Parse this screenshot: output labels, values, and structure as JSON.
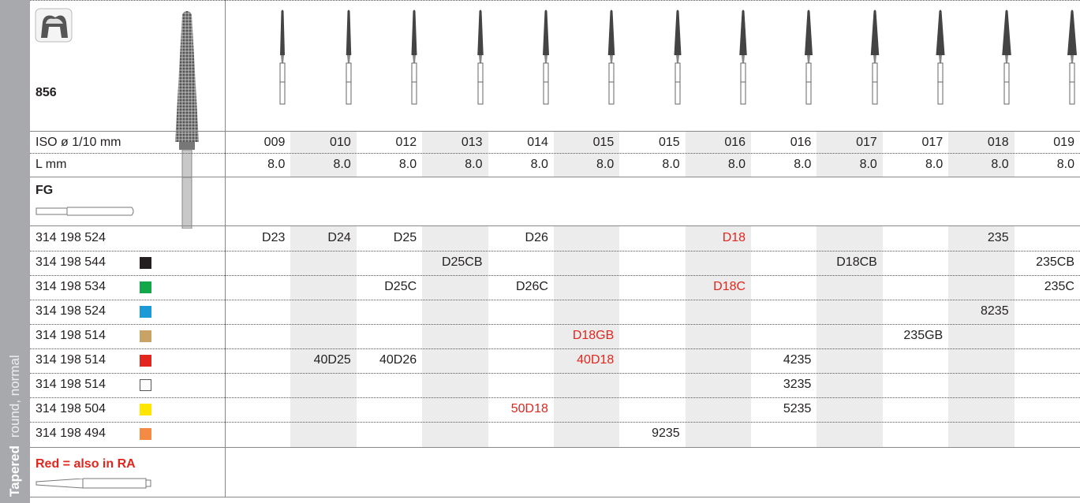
{
  "header": {
    "number": "856",
    "iso_label": "ISO ø 1/10 mm",
    "length_label": "L mm",
    "shank": "FG",
    "note": "Red = also in RA",
    "side_title": "Tapered",
    "side_subtitle": "round, normal"
  },
  "column_shade": "#ececec",
  "iso": [
    "009",
    "010",
    "012",
    "013",
    "014",
    "015",
    "015",
    "016",
    "016",
    "017",
    "017",
    "018",
    "019"
  ],
  "length": [
    "8.0",
    "8.0",
    "8.0",
    "8.0",
    "8.0",
    "8.0",
    "8.0",
    "8.0",
    "8.0",
    "8.0",
    "8.0",
    "8.0",
    "8.0"
  ],
  "rows": [
    {
      "code": "314 198 524",
      "swatch": null,
      "cells": [
        "D23",
        "D24",
        "D25",
        null,
        "D26",
        null,
        null,
        {
          "text": "D18",
          "color": "#e2261d"
        },
        null,
        null,
        null,
        "235",
        null
      ]
    },
    {
      "code": "314 198 544",
      "swatch": "#231f20",
      "cells": [
        null,
        null,
        null,
        "D25CB",
        null,
        null,
        null,
        null,
        null,
        "D18CB",
        null,
        null,
        "235CB"
      ]
    },
    {
      "code": "314 198 534",
      "swatch": "#12a84a",
      "cells": [
        null,
        null,
        "D25C",
        null,
        "D26C",
        null,
        null,
        {
          "text": "D18C",
          "color": "#e2261d"
        },
        null,
        null,
        null,
        null,
        "235C"
      ]
    },
    {
      "code": "314 198 524",
      "swatch": "#1a9ad6",
      "cells": [
        null,
        null,
        null,
        null,
        null,
        null,
        null,
        null,
        null,
        null,
        null,
        "8235",
        null
      ]
    },
    {
      "code": "314 198 514",
      "swatch": "#c9a266",
      "cells": [
        null,
        null,
        null,
        null,
        null,
        {
          "text": "D18GB",
          "color": "#e2261d"
        },
        null,
        null,
        null,
        null,
        "235GB",
        null,
        null
      ]
    },
    {
      "code": "314 198 514",
      "swatch": "#e2261d",
      "cells": [
        null,
        "40D25",
        "40D26",
        null,
        null,
        {
          "text": "40D18",
          "color": "#e2261d"
        },
        null,
        null,
        "4235",
        null,
        null,
        null,
        null
      ]
    },
    {
      "code": "314 198 514",
      "swatch": "#ffffff",
      "cells": [
        null,
        null,
        null,
        null,
        null,
        null,
        null,
        null,
        "3235",
        null,
        null,
        null,
        null
      ]
    },
    {
      "code": "314 198 504",
      "swatch": "#ffe500",
      "cells": [
        null,
        null,
        null,
        null,
        {
          "text": "50D18",
          "color": "#e2261d"
        },
        null,
        null,
        null,
        "5235",
        null,
        null,
        null,
        null
      ]
    },
    {
      "code": "314 198 494",
      "swatch": "#f58a45",
      "cells": [
        null,
        null,
        null,
        null,
        null,
        null,
        "9235",
        null,
        null,
        null,
        null,
        null,
        null
      ]
    }
  ]
}
